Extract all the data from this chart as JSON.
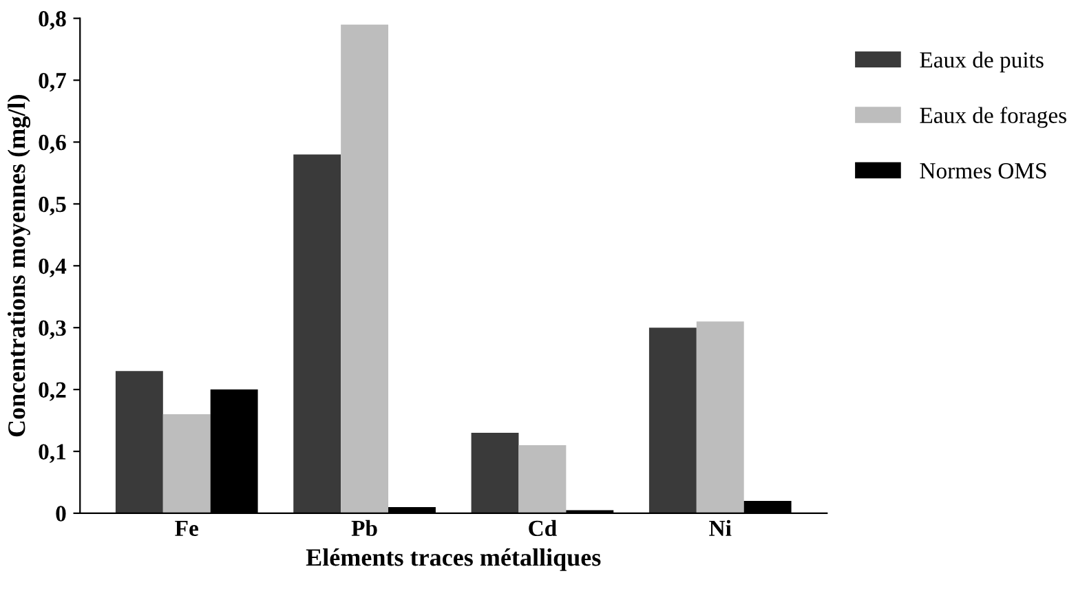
{
  "chart_data": {
    "type": "bar",
    "xlabel": "Eléments traces métalliques",
    "ylabel": "Concentrations moyennes (mg/l)",
    "categories": [
      "Fe",
      "Pb",
      "Cd",
      "Ni"
    ],
    "series": [
      {
        "name": "Eaux de puits",
        "color": "#3a3a3a",
        "values": [
          0.23,
          0.58,
          0.13,
          0.3
        ]
      },
      {
        "name": "Eaux de forages",
        "color": "#bdbdbd",
        "values": [
          0.16,
          0.79,
          0.11,
          0.31
        ]
      },
      {
        "name": "Normes OMS",
        "color": "#000000",
        "values": [
          0.2,
          0.01,
          0.005,
          0.02
        ]
      }
    ],
    "ylim": [
      0,
      0.8
    ],
    "yticks": [
      0,
      {
        "value": 0.1,
        "label": "0,1"
      },
      {
        "value": 0.2,
        "label": "0,2"
      },
      {
        "value": 0.3,
        "label": "0,3"
      },
      {
        "value": 0.4,
        "label": "0,4"
      },
      {
        "value": 0.5,
        "label": "0,5"
      },
      {
        "value": 0.6,
        "label": "0,6"
      },
      {
        "value": 0.7,
        "label": "0,7"
      },
      {
        "value": 0.8,
        "label": "0,8"
      }
    ],
    "legend": "right"
  }
}
